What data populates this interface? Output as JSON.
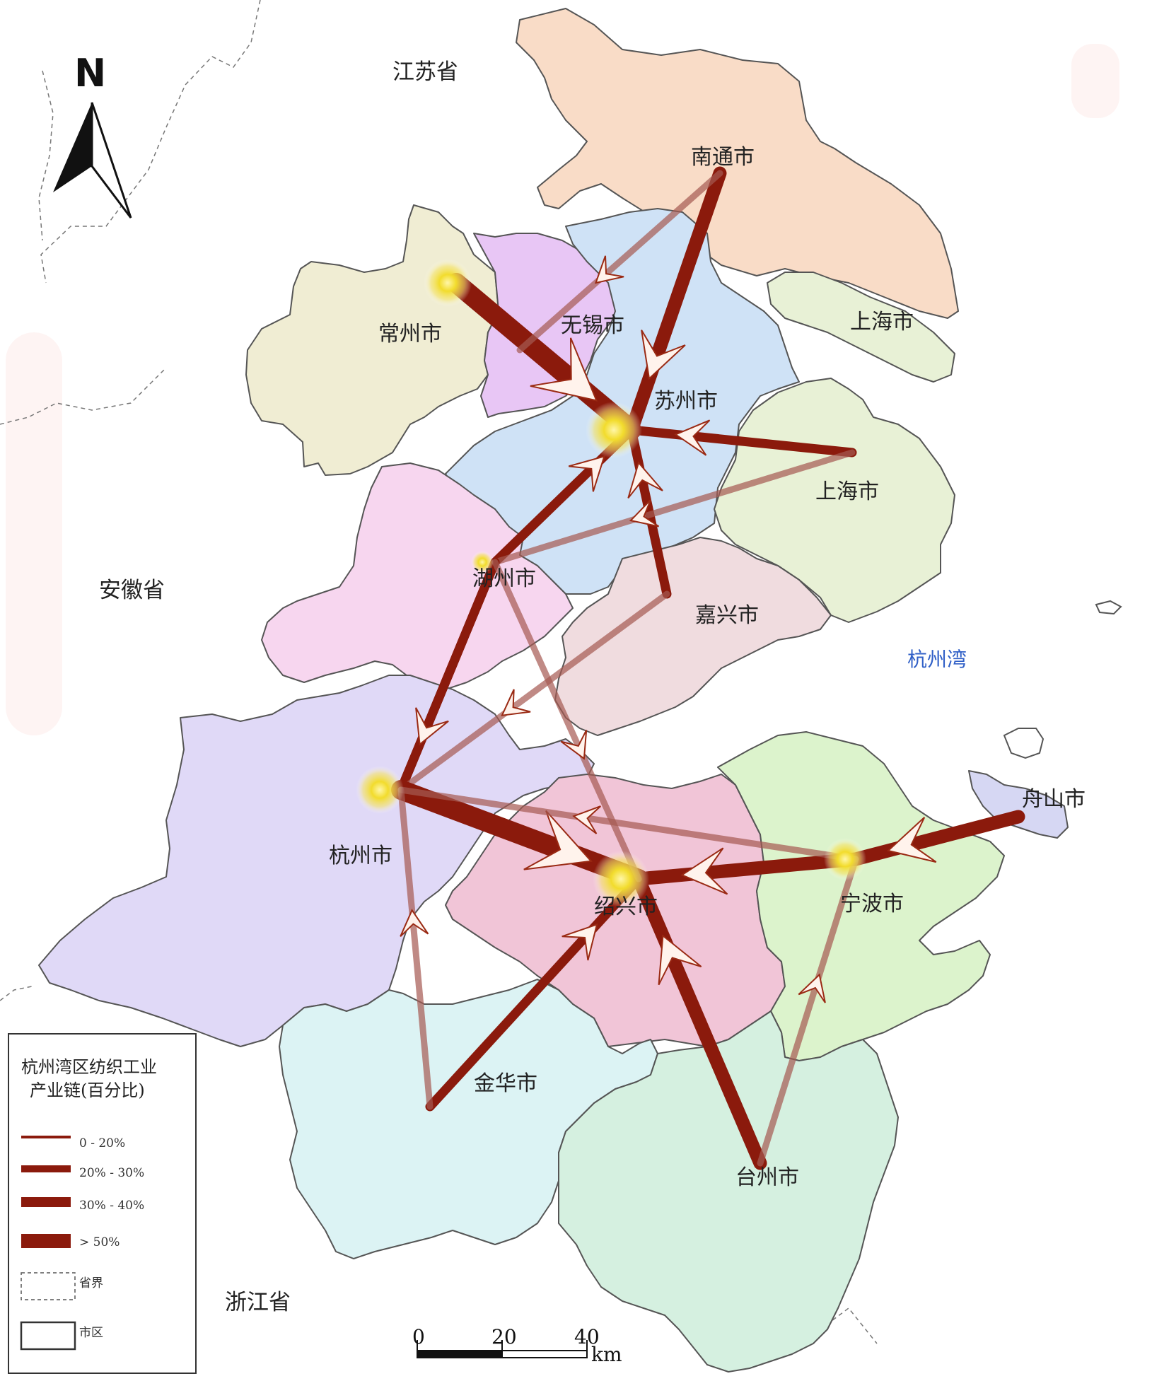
{
  "provinces": {
    "jiangsu": "江苏省",
    "anhui": "安徽省",
    "zhejiang": "浙江省"
  },
  "sea": "杭州湾",
  "north": "N",
  "cities": {
    "nantong": "南通市",
    "changzhou": "常州市",
    "wuxi": "无锡市",
    "suzhou": "苏州市",
    "shanghai_a": "上海市",
    "shanghai_b": "上海市",
    "huzhou": "湖州市",
    "jiaxing": "嘉兴市",
    "hangzhou": "杭州市",
    "shaoxing": "绍兴市",
    "ningbo": "宁波市",
    "zhoushan": "舟山市",
    "jinhua": "金华市",
    "taizhou": "台州市"
  },
  "scale": {
    "tick0": "0",
    "tick1": "20",
    "tick2": "40",
    "unit": "km"
  },
  "legend": {
    "title_line1": "杭州湾区纺织工业",
    "title_line2": "产业链(百分比)",
    "items": [
      "0 - 20%",
      "20% - 30%",
      "30% - 40%",
      "> 50%",
      "省界",
      "市区"
    ]
  },
  "colors": {
    "flow": "#8b1a0c",
    "flow_light": "#a65a52",
    "glow": "#f2dc2c",
    "sea_text": "#2f5fc7"
  },
  "flows": [
    {
      "from": "常州市",
      "to": "苏州市",
      "class": "> 50%"
    },
    {
      "from": "南通市",
      "to": "苏州市",
      "class": "30% - 40%"
    },
    {
      "from": "上海市",
      "to": "苏州市",
      "class": "20% - 30%"
    },
    {
      "from": "嘉兴市",
      "to": "苏州市",
      "class": "20% - 30%"
    },
    {
      "from": "湖州市",
      "to": "苏州市",
      "class": "20% - 30%"
    },
    {
      "from": "南通市",
      "to": "无锡市",
      "class": "0 - 20%"
    },
    {
      "from": "上海市",
      "to": "湖州市",
      "class": "0 - 20%"
    },
    {
      "from": "湖州市",
      "to": "杭州市",
      "class": "20% - 30%"
    },
    {
      "from": "嘉兴市",
      "to": "杭州市",
      "class": "0 - 20%"
    },
    {
      "from": "杭州市",
      "to": "绍兴市",
      "class": "> 50%"
    },
    {
      "from": "舟山市",
      "to": "宁波市",
      "class": "30% - 40%"
    },
    {
      "from": "宁波市",
      "to": "绍兴市",
      "class": "30% - 40%"
    },
    {
      "from": "宁波市",
      "to": "杭州市",
      "class": "0 - 20%"
    },
    {
      "from": "台州市",
      "to": "绍兴市",
      "class": "30% - 40%"
    },
    {
      "from": "金华市",
      "to": "绍兴市",
      "class": "20% - 30%"
    },
    {
      "from": "金华市",
      "to": "杭州市",
      "class": "0 - 20%"
    },
    {
      "from": "台州市",
      "to": "宁波市",
      "class": "0 - 20%"
    },
    {
      "from": "湖州市",
      "to": "绍兴市",
      "class": "0 - 20%"
    }
  ]
}
